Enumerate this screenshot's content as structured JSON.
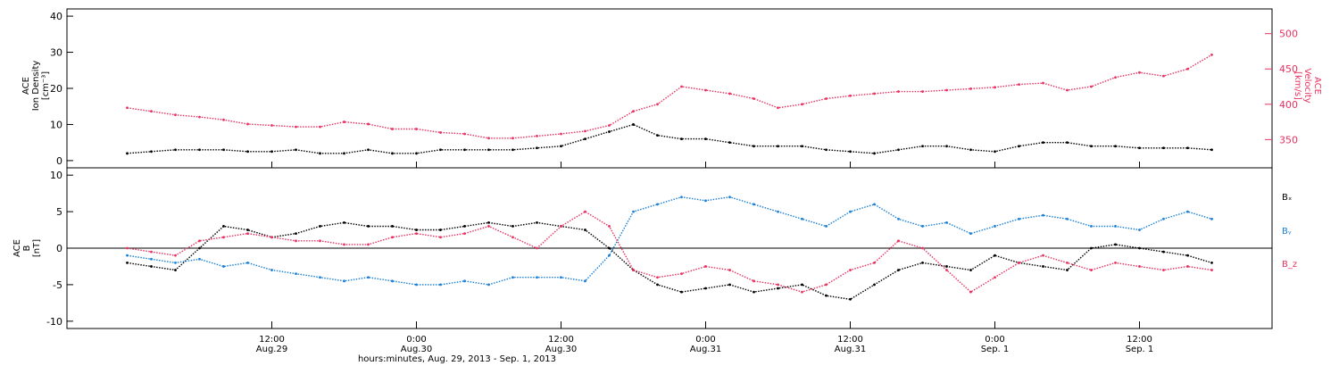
{
  "colors": {
    "density": "#000000",
    "velocity": "#e8315f",
    "bx": "#000000",
    "by": "#1a7fd6",
    "bz": "#e8315f",
    "axis": "#000000"
  },
  "chart_data": [
    {
      "type": "scatter",
      "panel": "top",
      "ylabel_lines": [
        "ACE",
        "Ion Density",
        "[cm⁻³]"
      ],
      "y2label_lines": [
        "ACE",
        "Velocity",
        "[km/s]"
      ],
      "ylim": [
        -2,
        42
      ],
      "y2lim": [
        310,
        535
      ],
      "yticks": [
        0,
        10,
        20,
        30,
        40
      ],
      "y2ticks": [
        350,
        400,
        450,
        500
      ],
      "series": [
        {
          "key": "density",
          "axis": "left",
          "x": [
            0,
            2,
            4,
            6,
            8,
            10,
            12,
            14,
            16,
            18,
            20,
            22,
            24,
            26,
            28,
            30,
            32,
            34,
            36,
            38,
            40,
            42,
            44,
            46,
            48,
            50,
            52,
            54,
            56,
            58,
            60,
            62,
            64,
            66,
            68,
            70,
            72,
            74,
            76,
            78,
            80,
            82,
            84,
            86,
            88,
            90
          ],
          "values": [
            2,
            2.5,
            3,
            3,
            3,
            2.5,
            2.5,
            3,
            2,
            2,
            3,
            2,
            2,
            3,
            3,
            3,
            3,
            3.5,
            4,
            6,
            8,
            10,
            7,
            6,
            6,
            5,
            4,
            4,
            4,
            3,
            2.5,
            2,
            3,
            4,
            4,
            3,
            2.5,
            4,
            5,
            5,
            4,
            4,
            3.5,
            3.5,
            3.5,
            3
          ]
        },
        {
          "key": "velocity",
          "axis": "right",
          "x": [
            0,
            2,
            4,
            6,
            8,
            10,
            12,
            14,
            16,
            18,
            20,
            22,
            24,
            26,
            28,
            30,
            32,
            34,
            36,
            38,
            40,
            42,
            44,
            46,
            48,
            50,
            52,
            54,
            56,
            58,
            60,
            62,
            64,
            66,
            68,
            70,
            72,
            74,
            76,
            78,
            80,
            82,
            84,
            86,
            88,
            90
          ],
          "values": [
            395,
            390,
            385,
            382,
            378,
            372,
            370,
            368,
            368,
            375,
            372,
            365,
            365,
            360,
            358,
            352,
            352,
            355,
            358,
            362,
            370,
            390,
            400,
            425,
            420,
            415,
            408,
            395,
            400,
            408,
            412,
            415,
            418,
            418,
            420,
            422,
            424,
            428,
            430,
            420,
            425,
            438,
            445,
            440,
            450,
            470
          ]
        }
      ]
    },
    {
      "type": "scatter",
      "panel": "bottom",
      "ylabel_lines": [
        "ACE",
        "B",
        "[nT]"
      ],
      "ylim": [
        -11,
        11
      ],
      "yticks": [
        -10,
        -5,
        0,
        5,
        10
      ],
      "zero_line": true,
      "legend_position": "right",
      "series": [
        {
          "key": "bx",
          "name": "Bₓ",
          "x": [
            0,
            2,
            4,
            6,
            8,
            10,
            12,
            14,
            16,
            18,
            20,
            22,
            24,
            26,
            28,
            30,
            32,
            34,
            36,
            38,
            40,
            42,
            44,
            46,
            48,
            50,
            52,
            54,
            56,
            58,
            60,
            62,
            64,
            66,
            68,
            70,
            72,
            74,
            76,
            78,
            80,
            82,
            84,
            86,
            88,
            90
          ],
          "values": [
            -2,
            -2.5,
            -3,
            0,
            3,
            2.5,
            1.5,
            2,
            3,
            3.5,
            3,
            3,
            2.5,
            2.5,
            3,
            3.5,
            3,
            3.5,
            3,
            2.5,
            0,
            -3,
            -5,
            -6,
            -5.5,
            -5,
            -6,
            -5.5,
            -5,
            -6.5,
            -7,
            -5,
            -3,
            -2,
            -2.5,
            -3,
            -1,
            -2,
            -2.5,
            -3,
            0,
            0.5,
            0,
            -0.5,
            -1,
            -2
          ]
        },
        {
          "key": "by",
          "name": "Bᵧ",
          "x": [
            0,
            2,
            4,
            6,
            8,
            10,
            12,
            14,
            16,
            18,
            20,
            22,
            24,
            26,
            28,
            30,
            32,
            34,
            36,
            38,
            40,
            42,
            44,
            46,
            48,
            50,
            52,
            54,
            56,
            58,
            60,
            62,
            64,
            66,
            68,
            70,
            72,
            74,
            76,
            78,
            80,
            82,
            84,
            86,
            88,
            90
          ],
          "values": [
            -1,
            -1.5,
            -2,
            -1.5,
            -2.5,
            -2,
            -3,
            -3.5,
            -4,
            -4.5,
            -4,
            -4.5,
            -5,
            -5,
            -4.5,
            -5,
            -4,
            -4,
            -4,
            -4.5,
            -1,
            5,
            6,
            7,
            6.5,
            7,
            6,
            5,
            4,
            3,
            5,
            6,
            4,
            3,
            3.5,
            2,
            3,
            4,
            4.5,
            4,
            3,
            3,
            2.5,
            4,
            5,
            4
          ]
        },
        {
          "key": "bz",
          "name": "B_z",
          "x": [
            0,
            2,
            4,
            6,
            8,
            10,
            12,
            14,
            16,
            18,
            20,
            22,
            24,
            26,
            28,
            30,
            32,
            34,
            36,
            38,
            40,
            42,
            44,
            46,
            48,
            50,
            52,
            54,
            56,
            58,
            60,
            62,
            64,
            66,
            68,
            70,
            72,
            74,
            76,
            78,
            80,
            82,
            84,
            86,
            88,
            90
          ],
          "values": [
            0,
            -0.5,
            -1,
            1,
            1.5,
            2,
            1.5,
            1,
            1,
            0.5,
            0.5,
            1.5,
            2,
            1.5,
            2,
            3,
            1.5,
            0,
            3,
            5,
            3,
            -3,
            -4,
            -3.5,
            -2.5,
            -3,
            -4.5,
            -5,
            -6,
            -5,
            -3,
            -2,
            1,
            0,
            -3,
            -6,
            -4,
            -2,
            -1,
            -2,
            -3,
            -2,
            -2.5,
            -3,
            -2.5,
            -3
          ]
        }
      ]
    }
  ],
  "x_axis": {
    "range_hours": [
      -5,
      95
    ],
    "ticks": [
      {
        "time": "12:00",
        "date": "Aug.29",
        "h": 12
      },
      {
        "time": "0:00",
        "date": "Aug.30",
        "h": 24
      },
      {
        "time": "12:00",
        "date": "Aug.30",
        "h": 36
      },
      {
        "time": "0:00",
        "date": "Aug.31",
        "h": 48
      },
      {
        "time": "12:00",
        "date": "Aug.31",
        "h": 60
      },
      {
        "time": "0:00",
        "date": "Sep. 1",
        "h": 72
      },
      {
        "time": "12:00",
        "date": "Sep. 1",
        "h": 84
      }
    ],
    "label": "hours:minutes, Aug. 29, 2013 - Sep.  1, 2013"
  }
}
